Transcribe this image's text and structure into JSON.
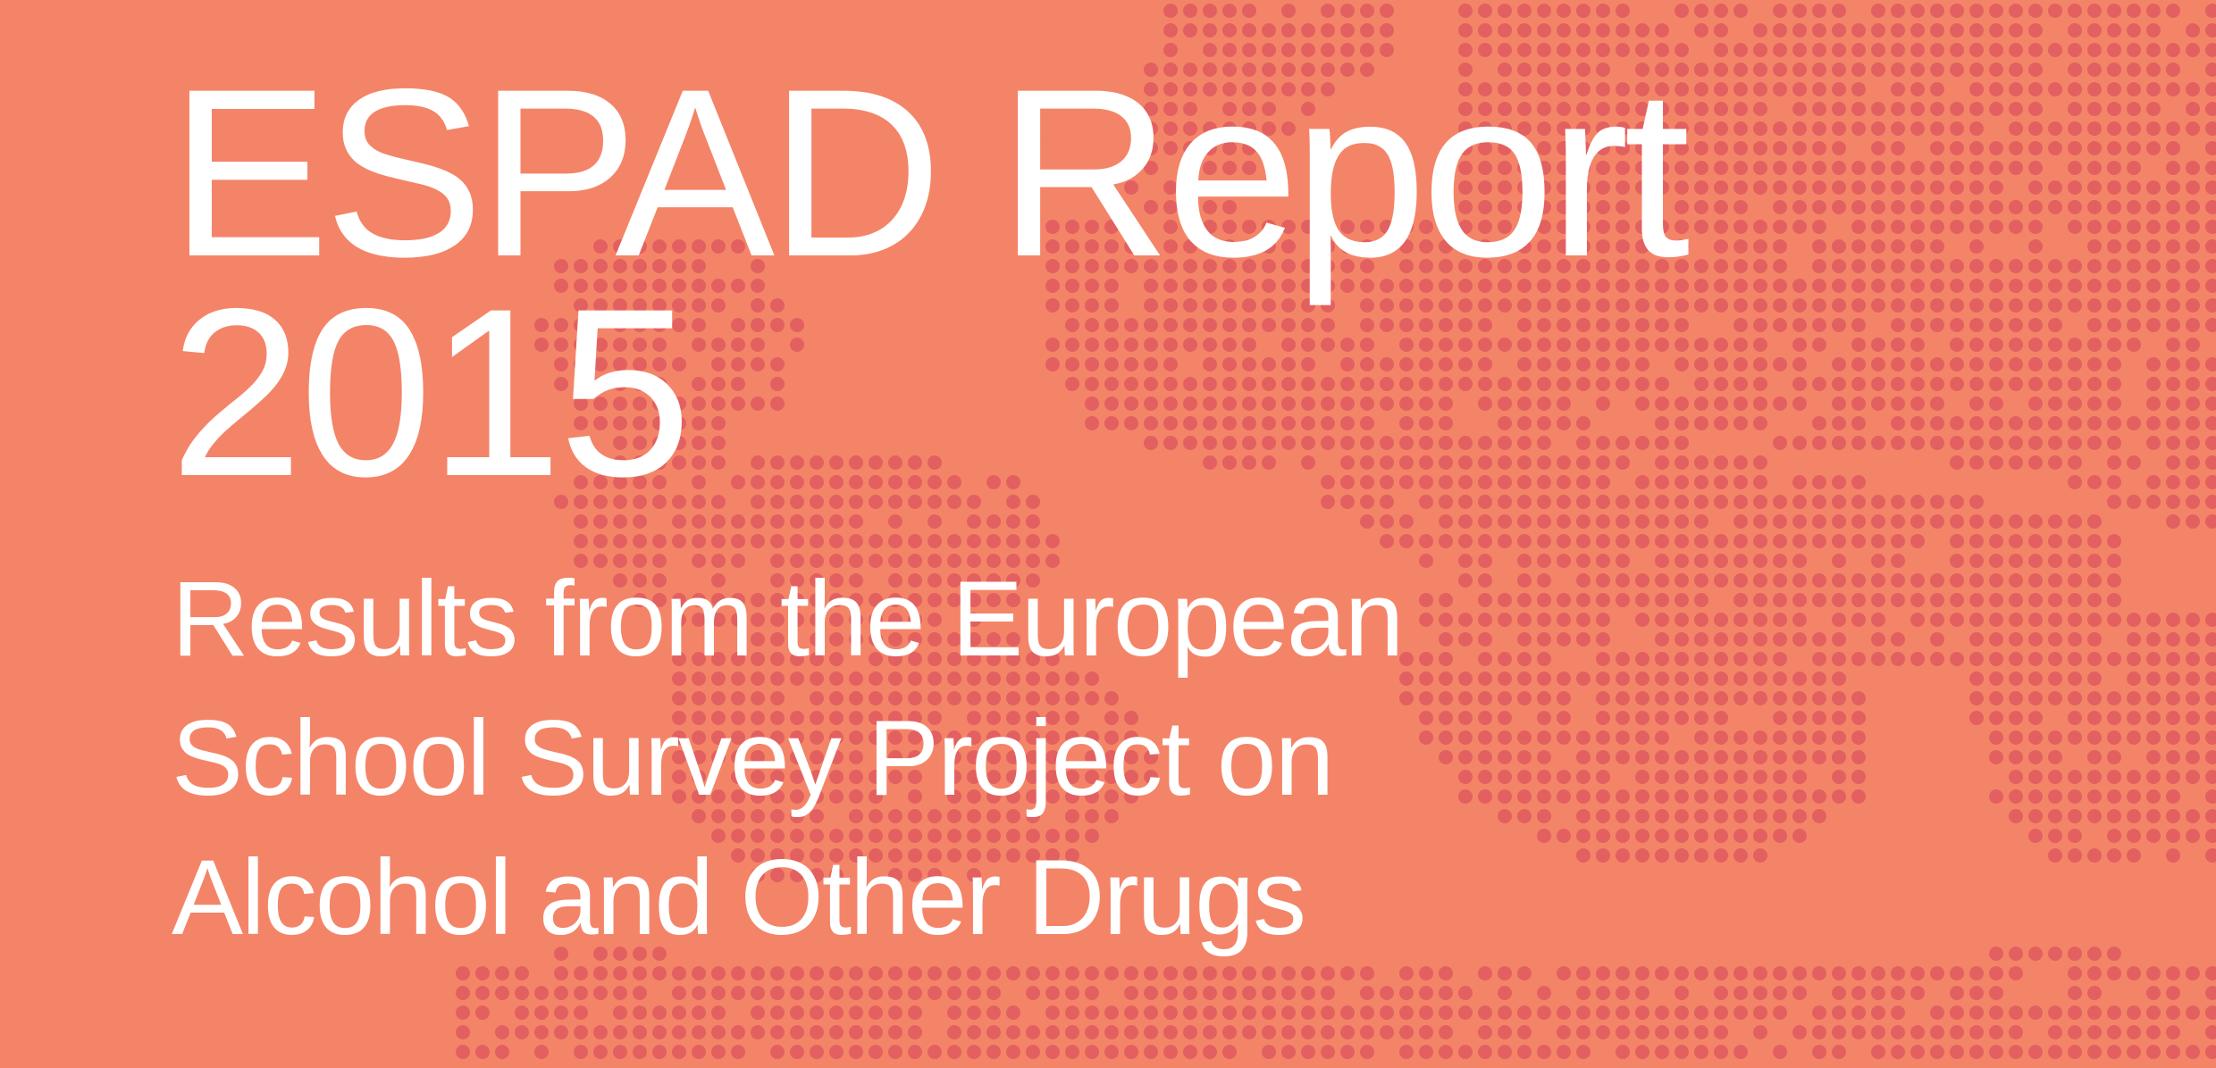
{
  "cover": {
    "background_color": "#F48468",
    "dot_color": "#E36060",
    "text_color": "#FFFFFF",
    "title_lines": [
      "ESPAD Report",
      "2015"
    ],
    "subtitle_lines": [
      "Results from the European",
      "School Survey Project on",
      "Alcohol and Other Drugs"
    ]
  }
}
